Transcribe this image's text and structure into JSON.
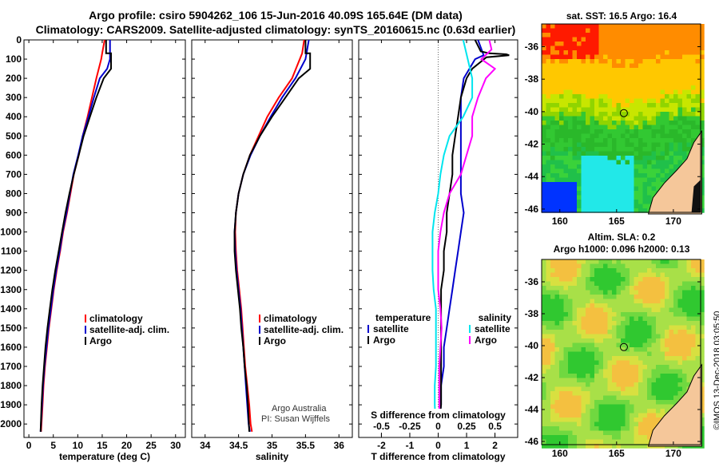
{
  "header": {
    "line1": "Argo profile: csiro 5904262_106 15-Jun-2016 40.09S 165.64E (DM data)",
    "line2": "Climatology: CARS2009. Satellite-adjusted climatology: synTS_20160615.nc (0.63d earlier)"
  },
  "colors": {
    "climatology": "#ff0000",
    "satellite": "#0000cc",
    "argo": "#000000",
    "satellite_s": "#00e5ee",
    "argo_s": "#ff00ff"
  },
  "side_text": "©IMOS 13-Dec-2018 03:05:50",
  "credit": {
    "line1": "Argo Australia",
    "line2": "PI: Susan Wijffels"
  },
  "chart_data": [
    {
      "type": "line",
      "xlabel": "temperature (deg C)",
      "xlim": [
        -1,
        32
      ],
      "xticks": [
        0,
        5,
        10,
        15,
        20,
        25,
        30
      ],
      "ylim": [
        2070,
        0
      ],
      "yticks": [
        0,
        100,
        200,
        300,
        400,
        500,
        600,
        700,
        800,
        900,
        1000,
        1100,
        1200,
        1300,
        1400,
        1500,
        1600,
        1700,
        1800,
        1900,
        2000
      ],
      "legend": [
        "climatology",
        "satellite-adj. clim.",
        "Argo"
      ],
      "series": [
        {
          "name": "climatology",
          "x": [
            15.5,
            15,
            14.8,
            13.8,
            12.9,
            12,
            11,
            10.2,
            9.2,
            8.5,
            7.8,
            7,
            6.4,
            5.7,
            5.1,
            4.6,
            4.1,
            3.7,
            3.3,
            3,
            2.8,
            2.5
          ],
          "y": [
            0,
            70,
            100,
            200,
            300,
            400,
            500,
            600,
            700,
            800,
            900,
            1000,
            1100,
            1200,
            1300,
            1400,
            1500,
            1600,
            1700,
            1800,
            1900,
            2040
          ]
        },
        {
          "name": "satellite-adj. clim.",
          "x": [
            16.6,
            16.6,
            16,
            14.5,
            13.3,
            12.2,
            11,
            10.1,
            9.1,
            8.4,
            7.7,
            6.9,
            6.3,
            5.6,
            5,
            4.5,
            4,
            3.6,
            3.2,
            2.9,
            2.7,
            2.4
          ],
          "y": [
            0,
            100,
            150,
            200,
            300,
            400,
            500,
            600,
            700,
            800,
            900,
            1000,
            1100,
            1200,
            1300,
            1400,
            1500,
            1600,
            1700,
            1800,
            1900,
            2040
          ]
        },
        {
          "name": "Argo",
          "x": [
            15.8,
            15.8,
            16.8,
            16.8,
            15.3,
            13.8,
            12.5,
            11.2,
            10.2,
            9.2,
            8.3,
            7.5,
            6.8,
            6.1,
            5.4,
            4.8,
            4.3,
            3.8,
            3.4,
            3.1,
            2.8,
            2.6,
            2.4
          ],
          "y": [
            0,
            70,
            70,
            150,
            200,
            300,
            400,
            500,
            600,
            700,
            800,
            900,
            1000,
            1100,
            1200,
            1300,
            1400,
            1500,
            1600,
            1700,
            1800,
            1900,
            2040
          ]
        }
      ]
    },
    {
      "type": "line",
      "xlabel": "salinity",
      "xlim": [
        33.8,
        36.2
      ],
      "xticks": [
        34,
        34.5,
        35,
        35.5,
        36
      ],
      "ylim": [
        2070,
        0
      ],
      "legend": [
        "climatology",
        "satellite-adj. clim.",
        "Argo"
      ],
      "series": [
        {
          "name": "climatology",
          "x": [
            35.48,
            35.45,
            35.3,
            35.1,
            34.93,
            34.8,
            34.67,
            34.57,
            34.5,
            34.46,
            34.45,
            34.46,
            34.48,
            34.51,
            34.54,
            34.56,
            34.58,
            34.6,
            34.63,
            34.66,
            34.68,
            34.7
          ],
          "y": [
            0,
            70,
            200,
            300,
            400,
            500,
            600,
            700,
            800,
            900,
            1000,
            1100,
            1200,
            1300,
            1400,
            1500,
            1600,
            1700,
            1800,
            1900,
            2000,
            2040
          ]
        },
        {
          "name": "satellite-adj. clim.",
          "x": [
            35.55,
            35.5,
            35.35,
            35.15,
            34.98,
            34.82,
            34.68,
            34.57,
            34.5,
            34.46,
            34.44,
            34.45,
            34.47,
            34.5,
            34.53,
            34.55,
            34.57,
            34.59,
            34.61,
            34.63,
            34.65,
            34.67
          ],
          "y": [
            0,
            100,
            200,
            300,
            400,
            500,
            600,
            700,
            800,
            900,
            1000,
            1100,
            1200,
            1300,
            1400,
            1500,
            1600,
            1700,
            1800,
            1900,
            2000,
            2040
          ]
        },
        {
          "name": "Argo",
          "x": [
            35.5,
            35.5,
            35.57,
            35.57,
            35.4,
            35.2,
            35,
            34.82,
            34.67,
            34.57,
            34.5,
            34.46,
            34.44,
            34.44,
            34.46,
            34.49,
            34.52,
            34.54,
            34.57,
            34.59,
            34.62,
            34.64,
            34.66
          ],
          "y": [
            0,
            70,
            70,
            150,
            200,
            300,
            400,
            500,
            600,
            700,
            800,
            900,
            1000,
            1100,
            1200,
            1300,
            1400,
            1500,
            1600,
            1700,
            1800,
            1900,
            2040
          ]
        }
      ]
    },
    {
      "type": "line",
      "xlabel": "T difference from climatology",
      "xlim": [
        -2.8,
        2.8
      ],
      "xticks": [
        -2,
        -1,
        0,
        1,
        2
      ],
      "ylim": [
        2070,
        0
      ],
      "legend": [
        "temperature",
        "satellite",
        "Argo",
        "salinity",
        "satellite",
        "Argo"
      ],
      "secondary_axis_label": "S difference from climatology",
      "secondary_ticks": [
        -0.5,
        -0.25,
        0,
        0.25,
        0.5
      ],
      "secondary_tick_labels": [
        "-0.5",
        "-0.25",
        "0",
        "0.25",
        "0.5"
      ],
      "series": [
        {
          "name": "satellite",
          "x": [
            1.4,
            1.6,
            1.3,
            1.1,
            0.9,
            0.8,
            0.8,
            0.8,
            0.8,
            0.8,
            0.8,
            0.9,
            0.8,
            0.7,
            0.6,
            0.5,
            0.4,
            0.3,
            0.2,
            0.2,
            0.1,
            0.1,
            0
          ],
          "y": [
            0,
            80,
            100,
            150,
            200,
            300,
            400,
            500,
            600,
            700,
            800,
            900,
            1000,
            1100,
            1200,
            1300,
            1400,
            1500,
            1600,
            1700,
            1800,
            1900,
            2040
          ]
        },
        {
          "name": "Argo",
          "x": [
            1.3,
            1.5,
            1.8,
            2.4,
            2.5,
            1.7,
            1.2,
            1,
            0.8,
            0.7,
            0.6,
            0.5,
            0.5,
            0.4,
            0.3,
            0.3,
            0.2,
            0.2,
            0.1,
            0.1,
            0.1,
            0.1,
            0.1,
            0
          ],
          "y": [
            0,
            60,
            70,
            75,
            80,
            90,
            150,
            200,
            300,
            400,
            500,
            600,
            700,
            800,
            900,
            1000,
            1100,
            1200,
            1300,
            1400,
            1500,
            1600,
            1900,
            2040
          ]
        },
        {
          "name": "satellite",
          "x": [
            0.22,
            0.26,
            0.3,
            0.3,
            0.22,
            0.1,
            0.05,
            0.02,
            0,
            -0.03,
            -0.05,
            -0.05,
            -0.05,
            -0.04,
            -0.02,
            -0.02,
            -0.02,
            -0.02,
            -0.03,
            -0.03,
            -0.02
          ],
          "y": [
            0,
            100,
            200,
            300,
            400,
            500,
            600,
            700,
            800,
            900,
            1000,
            1100,
            1200,
            1300,
            1400,
            1500,
            1600,
            1700,
            1800,
            1900,
            2040
          ]
        },
        {
          "name": "Argo",
          "x": [
            0.45,
            0.47,
            0.38,
            0.5,
            0.42,
            0.35,
            0.3,
            0.3,
            0.25,
            0.2,
            0.1,
            0.05,
            0.02,
            0,
            0,
            0,
            0.02,
            0.03,
            0.02,
            0.01,
            0.01
          ],
          "y": [
            0,
            50,
            100,
            150,
            200,
            300,
            400,
            500,
            600,
            700,
            800,
            900,
            1000,
            1100,
            1200,
            1300,
            1400,
            1500,
            1600,
            1700,
            2040
          ]
        }
      ]
    }
  ],
  "maps": [
    {
      "title": "sat. SST: 16.5 Argo: 16.4",
      "xticks": [
        "160",
        "165",
        "170"
      ],
      "yticks": [
        "-36",
        "-38",
        "-40",
        "-42",
        "-44",
        "-46"
      ],
      "marker": {
        "lon": 165.64,
        "lat": -40.09
      }
    },
    {
      "title_line1": "Altim. SLA: 0.2",
      "title_line2": "Argo h1000: 0.096 h2000: 0.13",
      "xticks": [
        "160",
        "165",
        "170"
      ],
      "yticks": [
        "-36",
        "-38",
        "-40",
        "-42",
        "-44",
        "-46"
      ],
      "marker": {
        "lon": 165.64,
        "lat": -40.09
      }
    }
  ]
}
